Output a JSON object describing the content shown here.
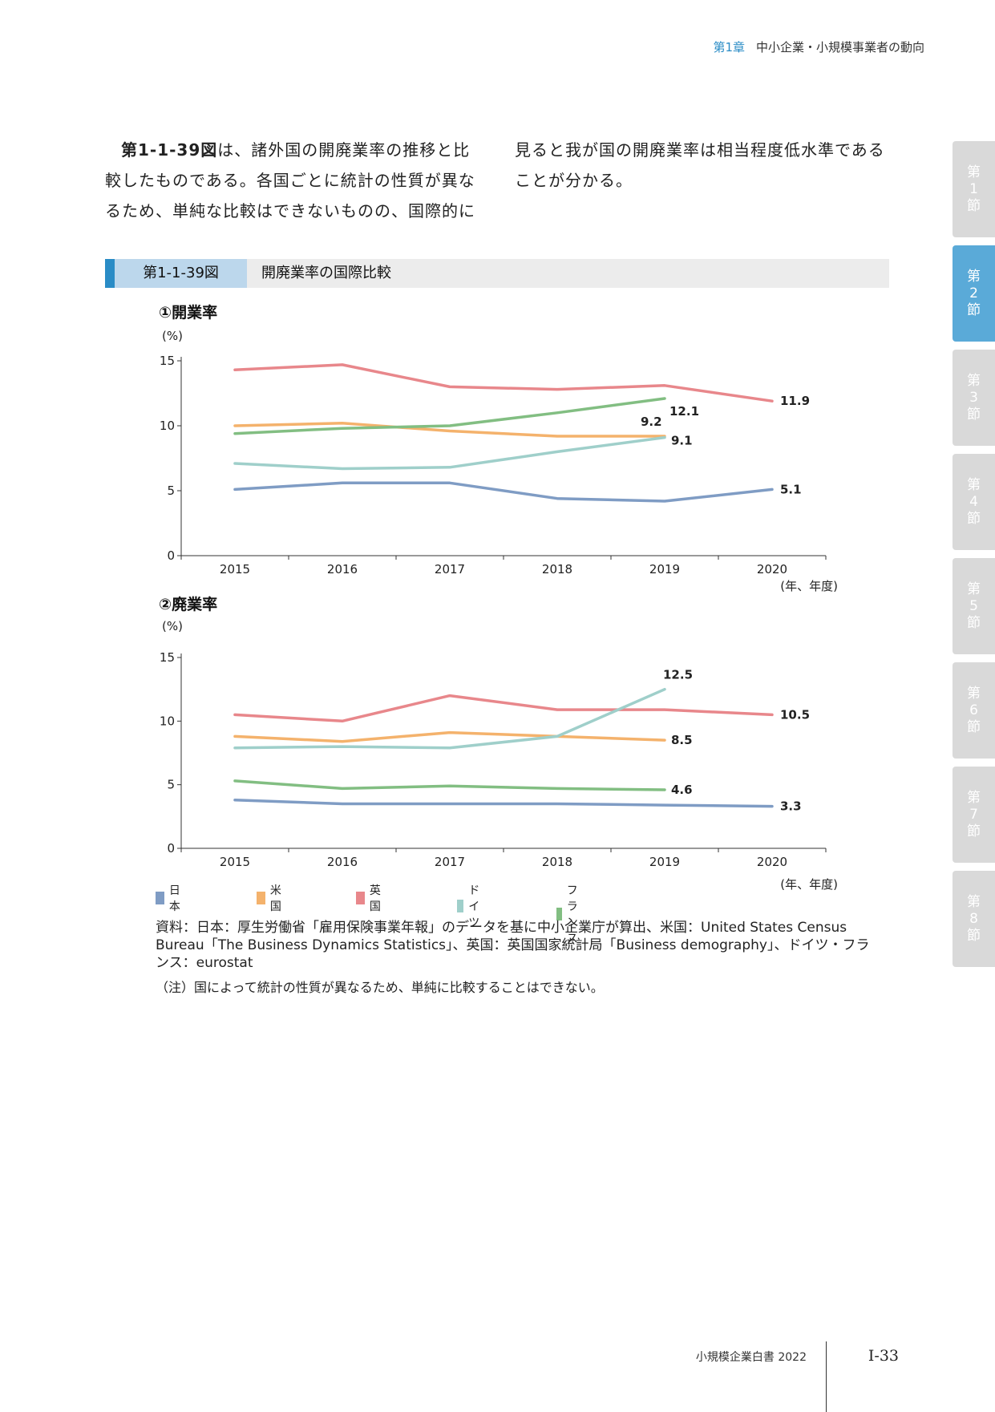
{
  "header": {
    "chapter": "第1章",
    "title": "中小企業・小規模事業者の動向"
  },
  "body_text": {
    "left_fig_ref": "第1-1-39図",
    "left_text": "は、諸外国の開廃業率の推移と比較したものである。各国ごとに統計の性質が異なるため、単純な比較はできないものの、国際的に",
    "right_text": "見ると我が国の開廃業率は相当程度低水準であることが分かる。"
  },
  "side_tabs": [
    {
      "lines": [
        "第",
        "1",
        "節"
      ],
      "active": false
    },
    {
      "lines": [
        "第",
        "2",
        "節"
      ],
      "active": true
    },
    {
      "lines": [
        "第",
        "3",
        "節"
      ],
      "active": false
    },
    {
      "lines": [
        "第",
        "4",
        "節"
      ],
      "active": false
    },
    {
      "lines": [
        "第",
        "5",
        "節"
      ],
      "active": false
    },
    {
      "lines": [
        "第",
        "6",
        "節"
      ],
      "active": false
    },
    {
      "lines": [
        "第",
        "7",
        "節"
      ],
      "active": false
    },
    {
      "lines": [
        "第",
        "8",
        "節"
      ],
      "active": false
    }
  ],
  "figure": {
    "number": "第1-1-39図",
    "title": "開廃業率の国際比較"
  },
  "chart_data": [
    {
      "type": "line",
      "title": "①開業率",
      "ylabel": "(%)",
      "xlabel": "(年、年度)",
      "x": [
        "2015",
        "2016",
        "2017",
        "2018",
        "2019",
        "2020"
      ],
      "ylim": [
        0,
        15
      ],
      "yticks": [
        0,
        5,
        10,
        15
      ],
      "series": [
        {
          "name": "日本",
          "color": "#7f9cc4",
          "values": [
            5.1,
            5.6,
            5.6,
            4.4,
            4.2,
            5.1
          ],
          "end_label": "5.1"
        },
        {
          "name": "米国",
          "color": "#f4b26c",
          "values": [
            10.0,
            10.2,
            9.6,
            9.2,
            9.2,
            null
          ],
          "end_label": "9.2"
        },
        {
          "name": "英国",
          "color": "#e8878b",
          "values": [
            14.3,
            14.7,
            13.0,
            12.8,
            13.1,
            11.9
          ],
          "end_label": "11.9"
        },
        {
          "name": "ドイツ",
          "color": "#9fcfca",
          "values": [
            7.1,
            6.7,
            6.8,
            8.0,
            9.1,
            null
          ],
          "end_label": "9.1"
        },
        {
          "name": "フランス",
          "color": "#82be82",
          "values": [
            9.4,
            9.8,
            10.0,
            11.0,
            12.1,
            null
          ],
          "end_label": "12.1"
        }
      ]
    },
    {
      "type": "line",
      "title": "②廃業率",
      "ylabel": "(%)",
      "xlabel": "(年、年度)",
      "x": [
        "2015",
        "2016",
        "2017",
        "2018",
        "2019",
        "2020"
      ],
      "ylim": [
        0,
        15
      ],
      "yticks": [
        0,
        5,
        10,
        15
      ],
      "series": [
        {
          "name": "日本",
          "color": "#7f9cc4",
          "values": [
            3.8,
            3.5,
            3.5,
            3.5,
            3.4,
            3.3
          ],
          "end_label": "3.3"
        },
        {
          "name": "米国",
          "color": "#f4b26c",
          "values": [
            8.8,
            8.4,
            9.1,
            8.8,
            8.5,
            null
          ],
          "end_label": "8.5"
        },
        {
          "name": "英国",
          "color": "#e8878b",
          "values": [
            10.5,
            10.0,
            12.0,
            10.9,
            10.9,
            10.5
          ],
          "end_label": "10.5"
        },
        {
          "name": "ドイツ",
          "color": "#9fcfca",
          "values": [
            7.9,
            8.0,
            7.9,
            8.8,
            12.5,
            null
          ],
          "end_label": "12.5"
        },
        {
          "name": "フランス",
          "color": "#82be82",
          "values": [
            5.3,
            4.7,
            4.9,
            4.7,
            4.6,
            null
          ],
          "end_label": "4.6"
        }
      ]
    }
  ],
  "legend": [
    {
      "name": "日本",
      "color": "#7f9cc4"
    },
    {
      "name": "米国",
      "color": "#f4b26c"
    },
    {
      "name": "英国",
      "color": "#e8878b"
    },
    {
      "name": "ドイツ",
      "color": "#9fcfca"
    },
    {
      "name": "フランス",
      "color": "#82be82"
    }
  ],
  "source": "資料：日本：厚生労働省「雇用保険事業年報」のデータを基に中小企業庁が算出、米国：United States Census Bureau「The Business Dynamics Statistics」、英国：英国国家統計局「Business demography」、ドイツ・フランス：eurostat",
  "note": "（注）国によって統計の性質が異なるため、単純に比較することはできない。",
  "footer": {
    "book": "小規模企業白書 2022",
    "page": "I-33"
  }
}
